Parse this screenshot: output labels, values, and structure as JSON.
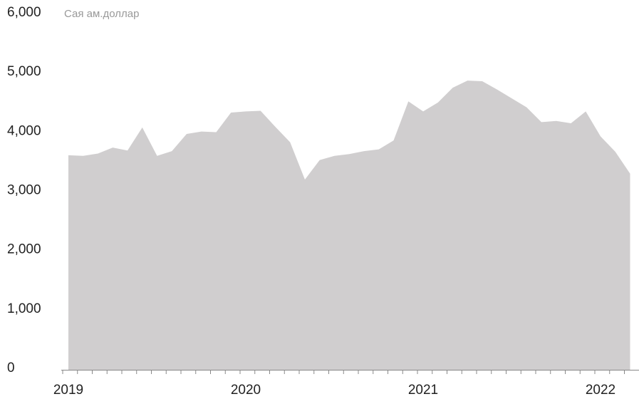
{
  "chart_data": {
    "type": "area",
    "y_label": "Сая ам.доллар",
    "categories": [
      "2019",
      null,
      null,
      null,
      null,
      null,
      null,
      null,
      null,
      null,
      null,
      null,
      "2020",
      null,
      null,
      null,
      null,
      null,
      null,
      null,
      null,
      null,
      null,
      null,
      "2021",
      null,
      null,
      null,
      null,
      null,
      null,
      null,
      null,
      null,
      null,
      null,
      "2022",
      null,
      null
    ],
    "values": [
      3620,
      3610,
      3650,
      3750,
      3700,
      4090,
      3610,
      3690,
      3980,
      4020,
      4010,
      4340,
      4360,
      4370,
      4100,
      3840,
      3210,
      3540,
      3610,
      3640,
      3690,
      3720,
      3870,
      4530,
      4360,
      4510,
      4760,
      4880,
      4870,
      4730,
      4580,
      4430,
      4180,
      4200,
      4160,
      4360,
      3940,
      3680,
      3310
    ],
    "color": "#d0cecf",
    "ylim": [
      0,
      6000
    ],
    "yticks": [
      0,
      {
        "value": 1000,
        "label": "1,000"
      },
      {
        "value": 2000,
        "label": "2,000"
      },
      {
        "value": 3000,
        "label": "3,000"
      },
      {
        "value": 4000,
        "label": "4,000"
      },
      {
        "value": 5000,
        "label": "5,000"
      },
      {
        "value": 6000,
        "label": "6,000"
      }
    ],
    "grid": false
  }
}
